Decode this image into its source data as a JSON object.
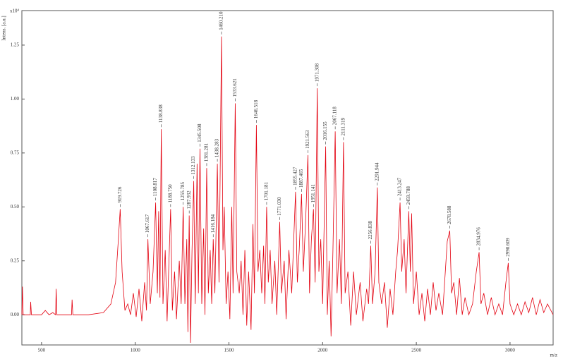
{
  "chart_data": {
    "type": "line",
    "y_label": "Intens. [a.u.]",
    "y_multiplier": "x10⁴",
    "x_label": "m/z",
    "xlim": [
      395,
      3230
    ],
    "ylim": [
      -0.14,
      1.41
    ],
    "xticks": [
      500,
      1000,
      1500,
      2000,
      2500,
      3000
    ],
    "yticks": [
      {
        "value": 0,
        "label": "0.00"
      },
      {
        "value": 0.25,
        "label": "0.25"
      },
      {
        "value": 0.5,
        "label": "0.50"
      },
      {
        "value": 0.75,
        "label": "0.75"
      },
      {
        "value": 1,
        "label": "1.00"
      },
      {
        "value": 1.25,
        "label": "1.25"
      }
    ],
    "series": [
      {
        "color": "#e3000f",
        "x": [
          395,
          398,
          402,
          440,
          442,
          446,
          500,
          520,
          540,
          560,
          575,
          578,
          582,
          620,
          660,
          663,
          667,
          750,
          830,
          870,
          895,
          910,
          919.726,
          930,
          945,
          960,
          975,
          990,
          1005,
          1020,
          1035,
          1050,
          1060,
          1067.617,
          1080,
          1095,
          1108.817,
          1118,
          1125,
          1132,
          1138.838,
          1148,
          1160,
          1170,
          1180,
          1188.75,
          1198,
          1210,
          1220,
          1235,
          1245,
          1255.785,
          1265,
          1275,
          1281,
          1287.932,
          1295,
          1303,
          1312.133,
          1320,
          1330,
          1337,
          1345.508,
          1355,
          1365,
          1372,
          1381.281,
          1390,
          1400,
          1408,
          1416.184,
          1425,
          1438.283,
          1447,
          1452,
          1460.21,
          1468,
          1475,
          1485,
          1495,
          1505,
          1515,
          1522,
          1533.621,
          1542,
          1555,
          1565,
          1575,
          1585,
          1595,
          1605,
          1618,
          1628,
          1636,
          1646.518,
          1655,
          1665,
          1675,
          1685,
          1692,
          1701.181,
          1710,
          1720,
          1730,
          1745,
          1755,
          1771.03,
          1780,
          1795,
          1805,
          1820,
          1835,
          1855.427,
          1865,
          1875,
          1887.465,
          1897,
          1910,
          1921.563,
          1930,
          1940,
          1951.141,
          1960,
          1971.308,
          1980,
          1990,
          2000,
          2016.155,
          2025,
          2035,
          2045,
          2055,
          2067.118,
          2077,
          2090,
          2100,
          2111.319,
          2120,
          2135,
          2150,
          2165,
          2180,
          2200,
          2215,
          2235,
          2245,
          2256.838,
          2266,
          2280,
          2291.944,
          2300,
          2315,
          2330,
          2345,
          2360,
          2375,
          2390,
          2400,
          2413.247,
          2422,
          2435,
          2445,
          2459.788,
          2468,
          2475,
          2485,
          2500,
          2515,
          2530,
          2545,
          2560,
          2575,
          2590,
          2605,
          2620,
          2640,
          2665,
          2678.588,
          2688,
          2700,
          2715,
          2730,
          2745,
          2760,
          2780,
          2800,
          2820,
          2834.976,
          2845,
          2860,
          2880,
          2900,
          2920,
          2940,
          2960,
          2978,
          2990.609,
          3000,
          3020,
          3040,
          3060,
          3080,
          3100,
          3120,
          3140,
          3160,
          3180,
          3200,
          3230
        ],
        "values": [
          0,
          0.13,
          0,
          0,
          0.06,
          0,
          0,
          0.02,
          0,
          0.01,
          0,
          0.12,
          0,
          0,
          0,
          0.07,
          0,
          0,
          0.01,
          0.05,
          0.15,
          0.35,
          0.49,
          0.2,
          0.02,
          0.05,
          0,
          0.1,
          -0.01,
          0.12,
          -0.03,
          0.15,
          0.02,
          0.35,
          0.05,
          0.2,
          0.52,
          0.1,
          0.48,
          0.08,
          0.86,
          0.05,
          0.3,
          -0.03,
          0.25,
          0.49,
          0.02,
          0.2,
          -0.02,
          0.25,
          0.05,
          0.5,
          0.05,
          0.35,
          -0.08,
          0.46,
          -0.13,
          0.3,
          0.62,
          0.05,
          0.7,
          0.1,
          0.77,
          0.05,
          0.4,
          0,
          0.68,
          0.1,
          0.3,
          0.05,
          0.35,
          0.1,
          0.7,
          0.15,
          0.55,
          1.29,
          0.3,
          0.5,
          0.05,
          0.2,
          -0.02,
          0.5,
          0.1,
          0.98,
          0.2,
          0.1,
          0.25,
          0,
          0.3,
          -0.05,
          0.2,
          -0.07,
          0.42,
          0.1,
          0.88,
          0.2,
          0.3,
          0.1,
          0.32,
          0.05,
          0.5,
          0.15,
          0.3,
          0.05,
          0.25,
          0,
          0.43,
          0.1,
          0.25,
          -0.02,
          0.3,
          0.1,
          0.57,
          0.15,
          0.3,
          0.56,
          0.2,
          0.45,
          0.74,
          0.1,
          0.35,
          0.49,
          0.15,
          1.05,
          0.2,
          0.35,
          0.05,
          0.78,
          0,
          0.25,
          -0.1,
          0.3,
          0.85,
          0.1,
          0.35,
          0.05,
          0.8,
          0.1,
          0.2,
          -0.05,
          0.2,
          0,
          0.15,
          -0.03,
          0.12,
          0.05,
          0.32,
          0.05,
          0.2,
          0.59,
          0.15,
          0.05,
          0.15,
          -0.06,
          0.12,
          0,
          0.2,
          0.3,
          0.52,
          0.2,
          0.35,
          0.1,
          0.48,
          0.2,
          0.47,
          0.05,
          0.2,
          0,
          0.1,
          -0.03,
          0.12,
          0,
          0.15,
          0.02,
          0.1,
          0,
          0.34,
          0.39,
          0.1,
          0.15,
          0,
          0.17,
          0,
          0.08,
          0,
          0.05,
          0.2,
          0.29,
          0.05,
          0.1,
          0,
          0.08,
          0,
          0.05,
          0,
          0.15,
          0.24,
          0.05,
          0,
          0.05,
          0,
          0.06,
          0.01,
          0.08,
          0,
          0.07,
          0.01,
          0.05,
          0
        ]
      }
    ],
    "peaks": [
      {
        "x": 919.726,
        "y": 0.49,
        "label": "919.726"
      },
      {
        "x": 1067.617,
        "y": 0.35,
        "label": "1067.617"
      },
      {
        "x": 1108.817,
        "y": 0.52,
        "label": "1108.817"
      },
      {
        "x": 1138.838,
        "y": 0.86,
        "label": "1138.838"
      },
      {
        "x": 1188.75,
        "y": 0.49,
        "label": "1188.750"
      },
      {
        "x": 1255.785,
        "y": 0.5,
        "label": "1255.785"
      },
      {
        "x": 1287.932,
        "y": 0.46,
        "label": "1287.932"
      },
      {
        "x": 1312.133,
        "y": 0.62,
        "label": "1312.133"
      },
      {
        "x": 1345.508,
        "y": 0.77,
        "label": "1345.508"
      },
      {
        "x": 1381.281,
        "y": 0.68,
        "label": "1381.281"
      },
      {
        "x": 1416.184,
        "y": 0.35,
        "label": "1416.184"
      },
      {
        "x": 1438.283,
        "y": 0.7,
        "label": "1438.283"
      },
      {
        "x": 1460.21,
        "y": 1.29,
        "label": "1460.210"
      },
      {
        "x": 1533.621,
        "y": 0.98,
        "label": "1533.621"
      },
      {
        "x": 1646.518,
        "y": 0.88,
        "label": "1646.518"
      },
      {
        "x": 1701.181,
        "y": 0.5,
        "label": "1701.181"
      },
      {
        "x": 1771.03,
        "y": 0.43,
        "label": "1771.030"
      },
      {
        "x": 1855.427,
        "y": 0.57,
        "label": "1855.427"
      },
      {
        "x": 1887.465,
        "y": 0.56,
        "label": "1887.465"
      },
      {
        "x": 1921.563,
        "y": 0.74,
        "label": "1921.563"
      },
      {
        "x": 1951.141,
        "y": 0.49,
        "label": "1951.141"
      },
      {
        "x": 1971.308,
        "y": 1.05,
        "label": "1971.308"
      },
      {
        "x": 2016.155,
        "y": 0.78,
        "label": "2016.155"
      },
      {
        "x": 2067.118,
        "y": 0.85,
        "label": "2067.118"
      },
      {
        "x": 2111.319,
        "y": 0.8,
        "label": "2111.319"
      },
      {
        "x": 2256.838,
        "y": 0.32,
        "label": "2256.838"
      },
      {
        "x": 2291.944,
        "y": 0.59,
        "label": "2291.944"
      },
      {
        "x": 2413.247,
        "y": 0.52,
        "label": "2413.247"
      },
      {
        "x": 2459.788,
        "y": 0.48,
        "label": "2459.788"
      },
      {
        "x": 2678.588,
        "y": 0.39,
        "label": "2678.588"
      },
      {
        "x": 2834.976,
        "y": 0.29,
        "label": "2834.976"
      },
      {
        "x": 2990.609,
        "y": 0.24,
        "label": "2990.609"
      }
    ]
  }
}
